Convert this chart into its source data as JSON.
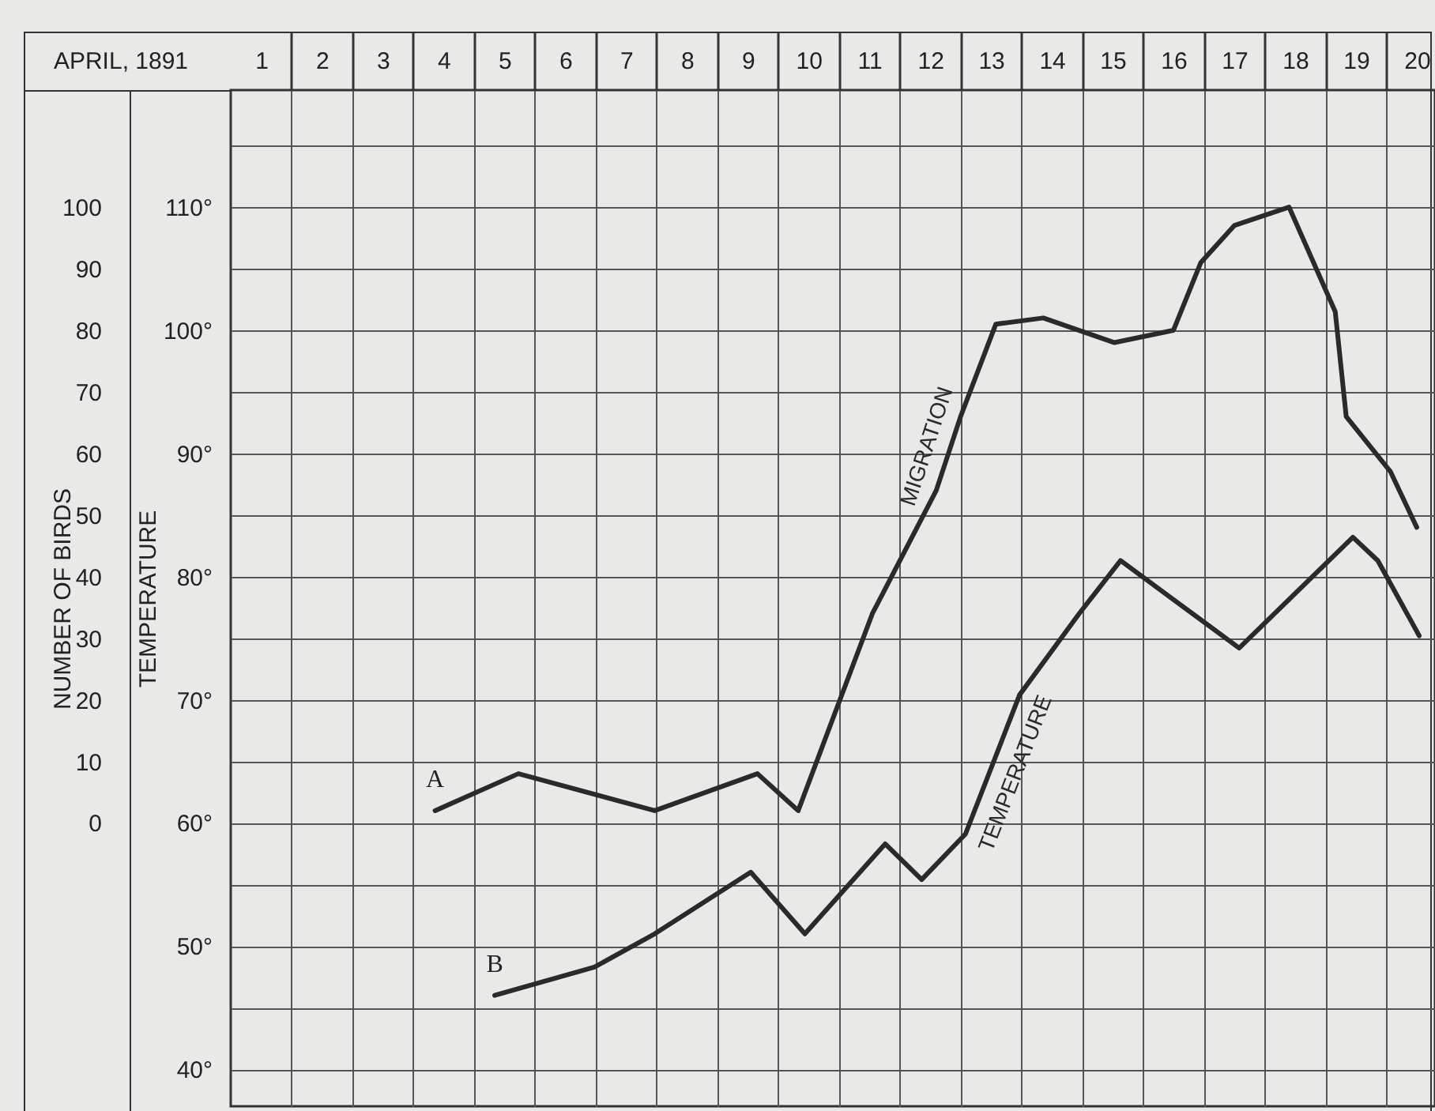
{
  "chart_data": {
    "type": "line",
    "xlabel": "APRIL, 1891",
    "ylabel": "NUMBER OF BIRDS",
    "y2label": "TEMPERATURE",
    "xlim": [
      0.5,
      20.3
    ],
    "xticks": [
      1,
      {
        "value": 1.5,
        "label": null
      },
      2,
      {
        "value": 2.5,
        "label": null
      },
      3,
      {
        "value": 3.5,
        "label": null
      },
      4,
      {
        "value": 4.5,
        "label": null
      },
      5,
      {
        "value": 5.5,
        "label": null
      },
      6,
      {
        "value": 6.5,
        "label": null
      },
      7,
      {
        "value": 7.5,
        "label": null
      },
      8,
      {
        "value": 8.5,
        "label": null
      },
      9,
      {
        "value": 9.5,
        "label": null
      },
      10,
      {
        "value": 10.5,
        "label": null
      },
      11,
      {
        "value": 11.5,
        "label": null
      },
      12,
      {
        "value": 12.5,
        "label": null
      },
      13,
      {
        "value": 13.5,
        "label": null
      },
      14,
      {
        "value": 14.5,
        "label": null
      },
      15,
      {
        "value": 15.5,
        "label": null
      },
      16,
      {
        "value": 16.5,
        "label": null
      },
      17,
      {
        "value": 17.5,
        "label": null
      },
      18,
      {
        "value": 18.5,
        "label": null
      },
      19,
      {
        "value": 19.5,
        "label": null
      },
      20
    ],
    "ylim": [
      -46,
      119
    ],
    "yticks": [
      0,
      10,
      20,
      30,
      40,
      50,
      60,
      70,
      80,
      90,
      100
    ],
    "y2lim": [
      37,
      119.5
    ],
    "y2ticks": [
      {
        "value": 40,
        "label": "40°"
      },
      {
        "value": 45,
        "label": null
      },
      {
        "value": 50,
        "label": "50°"
      },
      {
        "value": 55,
        "label": null
      },
      {
        "value": 60,
        "label": "60°"
      },
      {
        "value": 65,
        "label": null
      },
      {
        "value": 70,
        "label": "70°"
      },
      {
        "value": 75,
        "label": null
      },
      {
        "value": 80,
        "label": "80°"
      },
      {
        "value": 85,
        "label": null
      },
      {
        "value": 90,
        "label": "90°"
      },
      {
        "value": 95,
        "label": null
      },
      {
        "value": 100,
        "label": "100°"
      },
      {
        "value": 105,
        "label": null
      },
      {
        "value": 110,
        "label": "110°"
      },
      {
        "value": 115,
        "label": null
      }
    ],
    "grid": true,
    "line_style": "solid",
    "series": [
      {
        "name": "MIGRATION",
        "color": "#2a2a2a",
        "x": [
          3.86,
          5.23,
          7.47,
          9.16,
          9.83,
          11.05,
          12.1,
          12.5,
          13.08,
          13.86,
          15.03,
          16.0,
          16.45,
          17.0,
          17.9,
          18.66,
          18.84,
          19.57,
          20.0
        ],
        "values": [
          2,
          8,
          2,
          8,
          2,
          34,
          54,
          66,
          81,
          82,
          78,
          80,
          91,
          97,
          100,
          83,
          66,
          57,
          48
        ]
      },
      {
        "name": "TEMPERATURE",
        "color": "#2a2a2a",
        "axis": "y2",
        "x": [
          4.84,
          6.48,
          7.47,
          9.05,
          9.94,
          11.26,
          11.86,
          12.58,
          13.47,
          14.45,
          15.13,
          17.08,
          18.95,
          19.36,
          20.04
        ],
        "values": [
          46,
          48.3,
          51,
          56,
          51,
          58.3,
          55.4,
          59.1,
          70.4,
          77,
          81.3,
          74.2,
          83.2,
          81.3,
          75.2
        ]
      }
    ],
    "annotations": [
      "A",
      "B"
    ]
  }
}
